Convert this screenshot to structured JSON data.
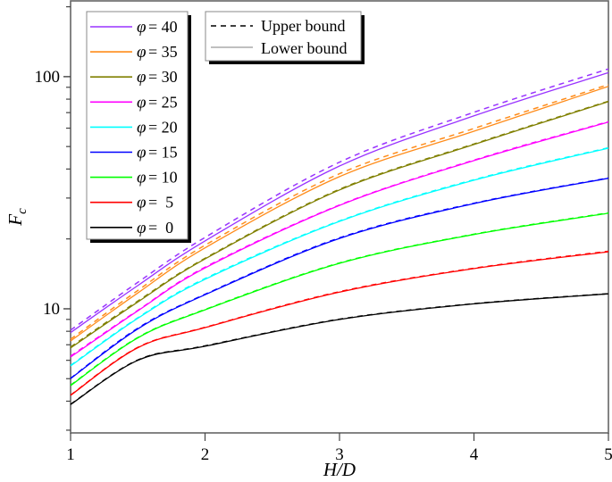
{
  "chart_data": {
    "type": "line",
    "title": "",
    "xlabel": "H/D",
    "ylabel": "F_c",
    "ylabel_main": "F",
    "ylabel_sub": "c",
    "xscale": "linear",
    "yscale": "log",
    "xlim": [
      1,
      5
    ],
    "ylim": [
      2.92,
      212
    ],
    "grid": false,
    "x_ticks": [
      1,
      2,
      3,
      4,
      5
    ],
    "y_ticks_labeled": [
      10,
      100
    ],
    "y_minor_ticks": [
      3,
      4,
      5,
      6,
      7,
      8,
      9,
      20,
      30,
      40,
      50,
      60,
      70,
      80,
      90,
      200
    ],
    "x": [
      1,
      1.5,
      2,
      3,
      4,
      5
    ],
    "series": [
      {
        "name": "φ = 40",
        "phi": 40,
        "color": "#9933ff",
        "upper": [
          8.1,
          13.0,
          20.3,
          42.8,
          70.2,
          108.0
        ],
        "lower": [
          7.9,
          12.6,
          19.6,
          41.2,
          67.8,
          104.0
        ]
      },
      {
        "name": "φ = 35",
        "phi": 35,
        "color": "#ff8c1a",
        "upper": [
          7.4,
          12.0,
          18.8,
          38.2,
          59.8,
          92.5
        ],
        "lower": [
          7.27,
          11.7,
          18.3,
          37.1,
          58.2,
          90.8
        ]
      },
      {
        "name": "φ = 30",
        "phi": 30,
        "color": "#808000",
        "upper": [
          6.85,
          10.8,
          16.5,
          32.7,
          51.3,
          78.4
        ],
        "lower": [
          6.78,
          10.7,
          16.4,
          32.5,
          51.0,
          78.0
        ]
      },
      {
        "name": "φ = 25",
        "phi": 25,
        "color": "#ff00ff",
        "upper": [
          6.25,
          9.85,
          15.1,
          28.0,
          43.7,
          64.0
        ],
        "lower": [
          6.2,
          9.8,
          15.0,
          27.9,
          43.5,
          63.7
        ]
      },
      {
        "name": "φ = 20",
        "phi": 20,
        "color": "#00ffff",
        "upper": [
          5.7,
          9.15,
          13.5,
          23.9,
          36.0,
          49.4
        ],
        "lower": [
          5.67,
          9.1,
          13.4,
          23.8,
          35.8,
          49.2
        ]
      },
      {
        "name": "φ = 15",
        "phi": 15,
        "color": "#0000ff",
        "upper": [
          5.02,
          8.25,
          11.55,
          20.2,
          28.5,
          36.6
        ],
        "lower": [
          5.0,
          8.2,
          11.5,
          20.1,
          28.4,
          36.5
        ]
      },
      {
        "name": "φ = 10",
        "phi": 10,
        "color": "#00ff00",
        "upper": [
          4.69,
          7.52,
          9.93,
          15.75,
          20.95,
          25.9
        ],
        "lower": [
          4.67,
          7.5,
          9.9,
          15.7,
          20.9,
          25.8
        ]
      },
      {
        "name": "φ =  5",
        "phi": 5,
        "color": "#ff0000",
        "upper": [
          4.25,
          6.82,
          8.32,
          11.85,
          14.95,
          17.7
        ],
        "lower": [
          4.24,
          6.8,
          8.3,
          11.8,
          14.9,
          17.6
        ]
      },
      {
        "name": "φ =  0",
        "phi": 0,
        "color": "#000000",
        "upper": [
          3.88,
          6.02,
          6.92,
          9.02,
          10.52,
          11.62
        ],
        "lower": [
          3.87,
          6.0,
          6.9,
          9.0,
          10.5,
          11.6
        ]
      }
    ],
    "legend_phi": {
      "position": "upper-left",
      "entries": [
        {
          "symbol": "φ",
          "eq": "= 40",
          "color": "#9933ff"
        },
        {
          "symbol": "φ",
          "eq": "= 35",
          "color": "#ff8c1a"
        },
        {
          "symbol": "φ",
          "eq": "= 30",
          "color": "#808000"
        },
        {
          "symbol": "φ",
          "eq": "= 25",
          "color": "#ff00ff"
        },
        {
          "symbol": "φ",
          "eq": "= 20",
          "color": "#00ffff"
        },
        {
          "symbol": "φ",
          "eq": "= 15",
          "color": "#0000ff"
        },
        {
          "symbol": "φ",
          "eq": "= 10",
          "color": "#00ff00"
        },
        {
          "symbol": "φ",
          "eq": "=  5",
          "color": "#ff0000"
        },
        {
          "symbol": "φ",
          "eq": "=  0",
          "color": "#000000"
        }
      ]
    },
    "legend_bounds": {
      "position": "upper-center",
      "entries": [
        {
          "label": "Upper bound",
          "style": "dashed",
          "color": "#000000"
        },
        {
          "label": "Lower bound",
          "style": "solid",
          "color": "#aaaaaa"
        }
      ]
    }
  }
}
